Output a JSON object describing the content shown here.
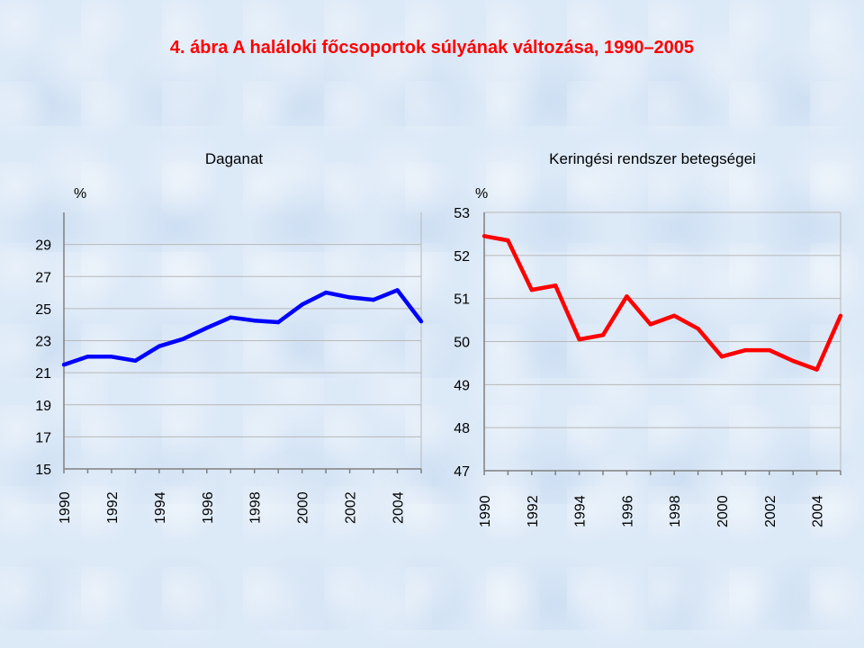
{
  "title": "4. ábra A haláloki főcsoportok súlyának változása, 1990–2005",
  "chart_data": [
    {
      "type": "line",
      "title": "Daganat",
      "ylabel": "%",
      "color": "#0000ff",
      "ylim": [
        15,
        31
      ],
      "yticks": [
        15,
        17,
        19,
        21,
        23,
        25,
        27,
        29
      ],
      "xticks": [
        "1990",
        "1992",
        "1994",
        "1996",
        "1998",
        "2000",
        "2002",
        "2004"
      ],
      "x": [
        1990,
        1991,
        1992,
        1993,
        1994,
        1995,
        1996,
        1997,
        1998,
        1999,
        2000,
        2001,
        2002,
        2003,
        2004,
        2005
      ],
      "values": [
        21.5,
        22.0,
        22.0,
        21.75,
        22.65,
        23.1,
        23.8,
        24.45,
        24.25,
        24.15,
        25.25,
        26.0,
        25.7,
        25.55,
        26.15,
        24.2
      ]
    },
    {
      "type": "line",
      "title": "Keringési rendszer betegségei",
      "ylabel": "%",
      "color": "#ff0000",
      "ylim": [
        47,
        53
      ],
      "yticks": [
        47,
        48,
        49,
        50,
        51,
        52,
        53
      ],
      "xticks": [
        "1990",
        "1992",
        "1994",
        "1996",
        "1998",
        "2000",
        "2002",
        "2004"
      ],
      "x": [
        1990,
        1991,
        1992,
        1993,
        1994,
        1995,
        1996,
        1997,
        1998,
        1999,
        2000,
        2001,
        2002,
        2003,
        2004,
        2005
      ],
      "values": [
        52.45,
        52.35,
        51.2,
        51.3,
        50.05,
        50.15,
        51.05,
        50.4,
        50.6,
        50.3,
        49.65,
        49.8,
        49.8,
        49.55,
        49.35,
        50.6
      ]
    }
  ]
}
